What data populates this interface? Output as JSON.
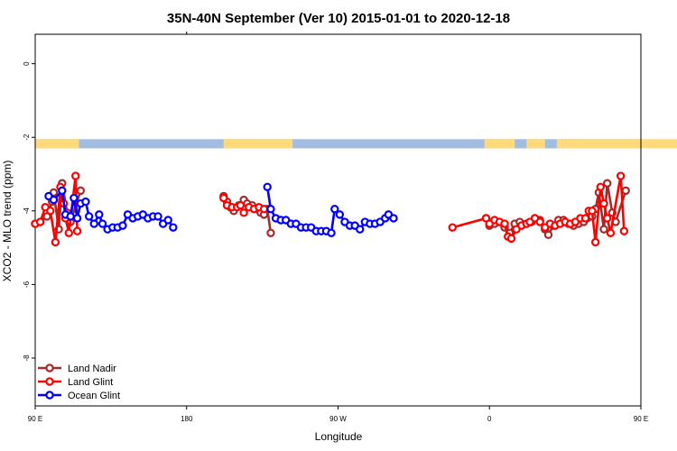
{
  "chart_data": {
    "type": "line",
    "title": "35N-40N September (Ver 10)   2015-01-01 to 2020-12-18",
    "xlabel": "Longitude",
    "ylabel": "XCO2 - MLO trend (ppm)",
    "xlim": [
      90,
      450
    ],
    "ylim": [
      -9.3,
      0.8
    ],
    "x_ticks": [
      {
        "value": 90,
        "label": "90 E"
      },
      {
        "value": 180,
        "label": "180"
      },
      {
        "value": 270,
        "label": "90 W"
      },
      {
        "value": 360,
        "label": "0"
      },
      {
        "value": 450,
        "label": "90 E"
      }
    ],
    "x_ticks_top": [
      {
        "value": 180,
        "label": "180"
      }
    ],
    "y_ticks": [
      {
        "value": 0,
        "label": "0"
      },
      {
        "value": -2,
        "label": "-2"
      },
      {
        "value": -4,
        "label": "-4"
      },
      {
        "value": -6,
        "label": "-6"
      },
      {
        "value": -8,
        "label": "-8"
      }
    ],
    "grid": false,
    "legend_position": "bottom-left",
    "land_strip": {
      "y_top": -2.05,
      "y_bottom": -2.3,
      "ocean_color": "#a3bde0",
      "land_color": "#ffd97a",
      "land_segments": [
        [
          90,
          116
        ],
        [
          202,
          243
        ],
        [
          357,
          375
        ],
        [
          382,
          393
        ],
        [
          400,
          405
        ],
        [
          405,
          480
        ]
      ]
    },
    "series": [
      {
        "name": "Land Nadir",
        "color": "#a52a2a",
        "points": [
          [
            90,
            -4.35
          ],
          [
            93,
            -4.3
          ],
          [
            97,
            -4.15
          ],
          [
            100,
            -3.75
          ],
          [
            101,
            -3.5
          ],
          [
            104,
            -4.5
          ],
          [
            106,
            -3.25
          ],
          [
            109,
            -4.05
          ],
          [
            111,
            -4.3
          ],
          [
            117,
            -3.45
          ],
          [
            202,
            -3.6
          ],
          [
            204,
            -3.75
          ],
          [
            206,
            -3.9
          ],
          [
            208,
            -4.0
          ],
          [
            211,
            -3.85
          ],
          [
            214,
            -3.7
          ],
          [
            216,
            -3.8
          ],
          [
            219,
            -3.85
          ],
          [
            222,
            -3.95
          ],
          [
            224,
            -4.05
          ],
          [
            226,
            -4.1
          ],
          [
            228,
            -3.95
          ],
          [
            230,
            -4.6
          ],
          [
            358,
            -4.2
          ],
          [
            360,
            -4.4
          ],
          [
            363,
            -4.35
          ],
          [
            366,
            -4.3
          ],
          [
            369,
            -4.45
          ],
          [
            372,
            -4.6
          ],
          [
            375,
            -4.35
          ],
          [
            378,
            -4.3
          ],
          [
            382,
            -4.35
          ],
          [
            385,
            -4.3
          ],
          [
            387,
            -4.2
          ],
          [
            390,
            -4.25
          ],
          [
            393,
            -4.5
          ],
          [
            395,
            -4.65
          ],
          [
            398,
            -4.4
          ],
          [
            401,
            -4.25
          ],
          [
            404,
            -4.25
          ],
          [
            407,
            -4.35
          ],
          [
            410,
            -4.4
          ],
          [
            413,
            -4.35
          ],
          [
            416,
            -4.3
          ],
          [
            418,
            -4.2
          ],
          [
            421,
            -4.15
          ],
          [
            423,
            -3.95
          ],
          [
            425,
            -3.5
          ],
          [
            428,
            -4.5
          ],
          [
            430,
            -3.25
          ],
          [
            433,
            -4.05
          ],
          [
            435,
            -4.3
          ],
          [
            441,
            -3.45
          ]
        ]
      },
      {
        "name": "Land Glint",
        "color": "#ff0000",
        "points": [
          [
            90,
            -4.35
          ],
          [
            93,
            -4.3
          ],
          [
            96,
            -3.9
          ],
          [
            99,
            -4.0
          ],
          [
            102,
            -4.85
          ],
          [
            105,
            -3.35
          ],
          [
            107,
            -3.8
          ],
          [
            108,
            -4.2
          ],
          [
            110,
            -4.6
          ],
          [
            114,
            -3.05
          ],
          [
            115,
            -4.55
          ],
          [
            202,
            -3.65
          ],
          [
            204,
            -3.85
          ],
          [
            207,
            -3.9
          ],
          [
            210,
            -3.9
          ],
          [
            212,
            -3.85
          ],
          [
            214,
            -4.05
          ],
          [
            217,
            -3.9
          ],
          [
            220,
            -3.95
          ],
          [
            223,
            -3.9
          ],
          [
            226,
            -3.95
          ],
          [
            338,
            -4.45
          ],
          [
            358,
            -4.2
          ],
          [
            360,
            -4.35
          ],
          [
            363,
            -4.25
          ],
          [
            366,
            -4.3
          ],
          [
            369,
            -4.35
          ],
          [
            371,
            -4.7
          ],
          [
            373,
            -4.75
          ],
          [
            376,
            -4.5
          ],
          [
            379,
            -4.4
          ],
          [
            382,
            -4.35
          ],
          [
            384,
            -4.3
          ],
          [
            387,
            -4.2
          ],
          [
            390,
            -4.3
          ],
          [
            393,
            -4.45
          ],
          [
            396,
            -4.35
          ],
          [
            399,
            -4.4
          ],
          [
            402,
            -4.35
          ],
          [
            405,
            -4.3
          ],
          [
            408,
            -4.35
          ],
          [
            411,
            -4.3
          ],
          [
            414,
            -4.2
          ],
          [
            417,
            -4.2
          ],
          [
            419,
            -4.0
          ],
          [
            421,
            -4.0
          ],
          [
            423,
            -4.85
          ],
          [
            426,
            -3.35
          ],
          [
            428,
            -3.8
          ],
          [
            430,
            -4.2
          ],
          [
            432,
            -4.6
          ],
          [
            438,
            -3.05
          ],
          [
            440,
            -4.55
          ]
        ]
      },
      {
        "name": "Ocean Glint",
        "color": "#0000ff",
        "points": [
          [
            98,
            -3.6
          ],
          [
            101,
            -3.7
          ],
          [
            106,
            -3.45
          ],
          [
            108,
            -4.1
          ],
          [
            111,
            -4.15
          ],
          [
            113,
            -3.65
          ],
          [
            115,
            -4.2
          ],
          [
            117,
            -3.8
          ],
          [
            120,
            -3.75
          ],
          [
            122,
            -4.15
          ],
          [
            125,
            -4.35
          ],
          [
            128,
            -4.1
          ],
          [
            130,
            -4.35
          ],
          [
            133,
            -4.5
          ],
          [
            136,
            -4.45
          ],
          [
            139,
            -4.45
          ],
          [
            142,
            -4.4
          ],
          [
            145,
            -4.1
          ],
          [
            148,
            -4.2
          ],
          [
            151,
            -4.15
          ],
          [
            154,
            -4.1
          ],
          [
            157,
            -4.2
          ],
          [
            160,
            -4.15
          ],
          [
            163,
            -4.15
          ],
          [
            166,
            -4.35
          ],
          [
            169,
            -4.25
          ],
          [
            172,
            -4.45
          ],
          [
            228,
            -3.35
          ],
          [
            230,
            -3.95
          ],
          [
            233,
            -4.2
          ],
          [
            236,
            -4.25
          ],
          [
            239,
            -4.25
          ],
          [
            242,
            -4.35
          ],
          [
            245,
            -4.35
          ],
          [
            248,
            -4.45
          ],
          [
            251,
            -4.45
          ],
          [
            254,
            -4.45
          ],
          [
            257,
            -4.55
          ],
          [
            260,
            -4.55
          ],
          [
            263,
            -4.55
          ],
          [
            266,
            -4.6
          ],
          [
            268,
            -3.95
          ],
          [
            271,
            -4.1
          ],
          [
            274,
            -4.3
          ],
          [
            277,
            -4.4
          ],
          [
            280,
            -4.4
          ],
          [
            283,
            -4.5
          ],
          [
            286,
            -4.3
          ],
          [
            289,
            -4.35
          ],
          [
            292,
            -4.35
          ],
          [
            295,
            -4.3
          ],
          [
            298,
            -4.2
          ],
          [
            300,
            -4.1
          ],
          [
            303,
            -4.2
          ]
        ]
      }
    ]
  }
}
